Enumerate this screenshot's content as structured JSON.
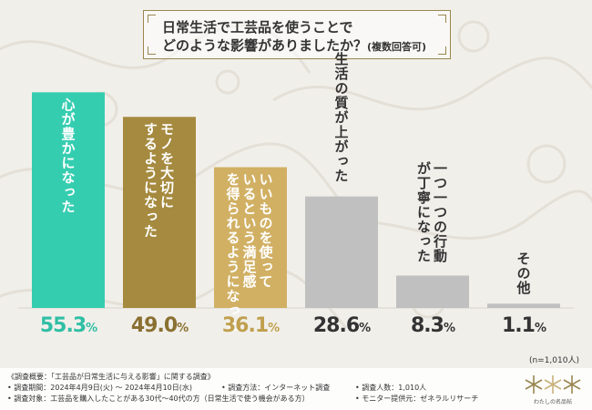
{
  "title": {
    "line1": "日常生活で工芸品を使うことで",
    "line2": "どのような影響がありましたか？",
    "note": "(複数回答可)"
  },
  "chart_data": {
    "type": "bar",
    "categories": [
      "心が豊かになった",
      "モノを大切にするようになった",
      "いいものを使っているという満足感を得られるようになった",
      "生活の質が上がった",
      "一つ一つの行動が丁寧になった",
      "その他"
    ],
    "values": [
      55.3,
      49.0,
      36.1,
      28.6,
      8.3,
      1.1
    ],
    "value_labels": [
      {
        "num": "55.3",
        "unit": "%"
      },
      {
        "num": "49.0",
        "unit": "%"
      },
      {
        "num": "36.1",
        "unit": "%"
      },
      {
        "num": "28.6",
        "unit": "%"
      },
      {
        "num": "8.3",
        "unit": "%"
      },
      {
        "num": "1.1",
        "unit": "%"
      }
    ],
    "bar_colors": [
      "#35cdb0",
      "#a58a3f",
      "#d1b064",
      "#c0c0c0",
      "#c0c0c0",
      "#c0c0c0"
    ],
    "value_colors": [
      "#2fbfa5",
      "#8a7032",
      "#c0a04f",
      "#333333",
      "#333333",
      "#333333"
    ],
    "ylim": [
      0,
      60
    ]
  },
  "sample_note": "(n=1,010人)",
  "footer": {
    "l1": "《調査概要：「工芸品が日常生活に与える影響」に関する調査》",
    "l2a": "• 調査期間：2024年4月9日(火) ～ 2024年4月10日(水)",
    "l2b": "• 調査方法：インターネット調査",
    "l2c": "• 調査人数：1,010人",
    "l3a": "• 調査対象：工芸品を購入したことがある30代～40代の方（日常生活で使う機会がある方）",
    "l3b": "• モニター提供元：ゼネラルリサーチ",
    "logo_text": "わたしの名品帖"
  }
}
